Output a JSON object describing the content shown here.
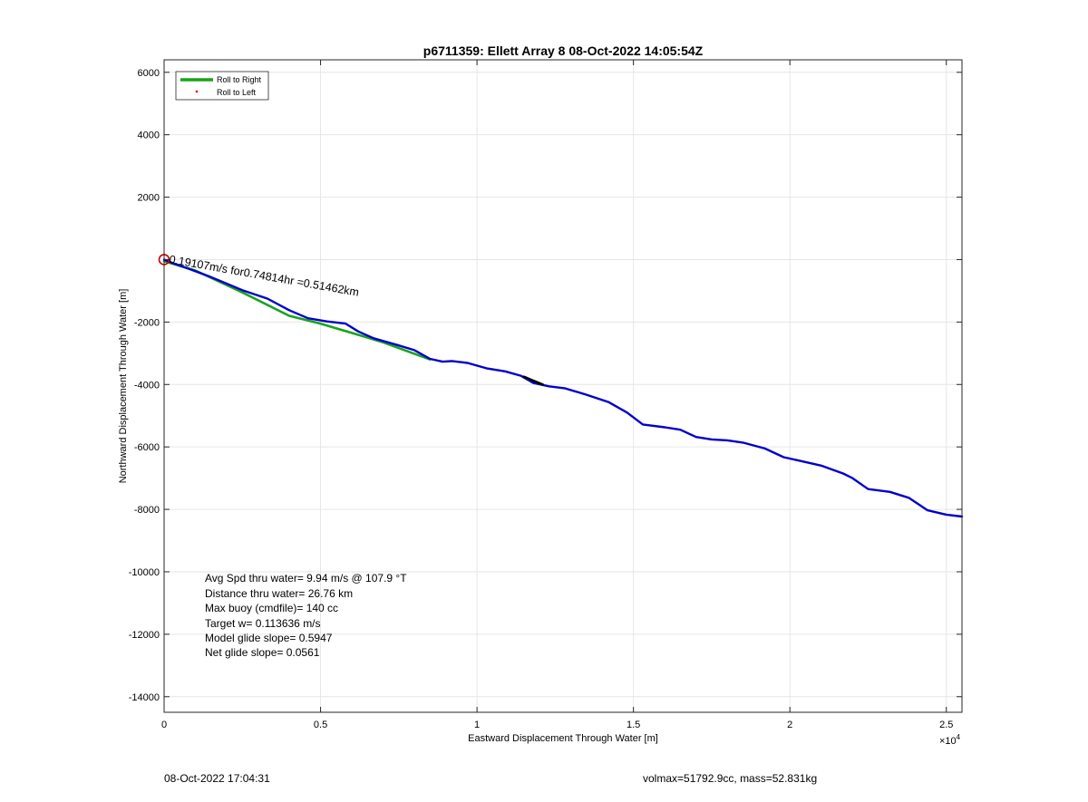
{
  "chart_data": {
    "type": "line",
    "title": "p6711359: Ellett Array 8 08-Oct-2022 14:05:54Z",
    "xlabel": "Eastward Displacement Through Water [m]",
    "ylabel": "Northward Displacement Through Water [m]",
    "x_exponent_label": "×10",
    "x_exponent_power": "4",
    "xlim": [
      0,
      25500
    ],
    "ylim": [
      -14500,
      6400
    ],
    "x_tick_values": [
      0,
      5000,
      10000,
      15000,
      20000,
      25000
    ],
    "x_tick_labels": [
      "0",
      "0.5",
      "1",
      "1.5",
      "2",
      "2.5"
    ],
    "y_tick_values": [
      6000,
      4000,
      2000,
      0,
      -2000,
      -4000,
      -6000,
      -8000,
      -10000,
      -12000,
      -14000
    ],
    "y_tick_labels": [
      "6000",
      "4000",
      "2000",
      "",
      "-2000",
      "-4000",
      "-6000",
      "-8000",
      "-10000",
      "-12000",
      "-14000"
    ],
    "grid": true,
    "legend": {
      "location": "top-left",
      "entries": [
        {
          "label": "Roll to Right",
          "color": "#1aa31a",
          "style": "line"
        },
        {
          "label": "Roll to Left",
          "color": "#e00000",
          "style": "dot"
        }
      ]
    },
    "series": [
      {
        "color": "#1aa31a",
        "points": [
          [
            0,
            -50
          ],
          [
            1000,
            -350
          ],
          [
            2500,
            -1050
          ],
          [
            4000,
            -1800
          ],
          [
            5000,
            -2050
          ],
          [
            6000,
            -2350
          ],
          [
            7000,
            -2650
          ],
          [
            8500,
            -3200
          ]
        ]
      },
      {
        "color": "#0000cc",
        "points": [
          [
            0,
            0
          ],
          [
            300,
            -120
          ],
          [
            800,
            -300
          ],
          [
            1500,
            -560
          ],
          [
            2500,
            -980
          ],
          [
            3300,
            -1250
          ],
          [
            4000,
            -1620
          ],
          [
            4600,
            -1880
          ],
          [
            5200,
            -1980
          ],
          [
            5800,
            -2050
          ],
          [
            6200,
            -2300
          ],
          [
            6700,
            -2520
          ],
          [
            7500,
            -2750
          ],
          [
            8000,
            -2900
          ],
          [
            8500,
            -3180
          ],
          [
            8900,
            -3270
          ],
          [
            9200,
            -3250
          ],
          [
            9700,
            -3310
          ],
          [
            10300,
            -3480
          ],
          [
            10900,
            -3580
          ],
          [
            11400,
            -3720
          ],
          [
            11800,
            -3950
          ],
          [
            12300,
            -4060
          ],
          [
            12800,
            -4120
          ],
          [
            13500,
            -4330
          ],
          [
            14200,
            -4560
          ],
          [
            14800,
            -4900
          ],
          [
            15300,
            -5280
          ],
          [
            16000,
            -5370
          ],
          [
            16500,
            -5450
          ],
          [
            17000,
            -5680
          ],
          [
            17500,
            -5760
          ],
          [
            18000,
            -5790
          ],
          [
            18500,
            -5860
          ],
          [
            19200,
            -6050
          ],
          [
            19800,
            -6330
          ],
          [
            20300,
            -6440
          ],
          [
            21000,
            -6600
          ],
          [
            21700,
            -6850
          ],
          [
            22000,
            -7000
          ],
          [
            22500,
            -7350
          ],
          [
            23200,
            -7440
          ],
          [
            23800,
            -7630
          ],
          [
            24400,
            -8030
          ],
          [
            25000,
            -8170
          ],
          [
            25500,
            -8230
          ]
        ]
      },
      {
        "color": "#000000",
        "points": [
          [
            11500,
            -3750
          ],
          [
            11800,
            -3880
          ],
          [
            12100,
            -4000
          ]
        ]
      }
    ],
    "start_marker": {
      "x": 0,
      "y": 0,
      "color": "#cc0000"
    },
    "annotations": {
      "segment_label": "0.19107m/s for0.74814hr =0.51462km",
      "stats": [
        "Avg Spd thru water=  9.94 m/s @ 107.9 °T",
        "Distance thru water= 26.76 km",
        "Max buoy (cmdfile)= 140 cc",
        "Target w= 0.113636 m/s",
        "Model glide slope= 0.5947",
        "Net glide slope= 0.0561"
      ]
    }
  },
  "footer": {
    "timestamp": "08-Oct-2022 17:04:31",
    "mass_info": "volmax=51792.9cc, mass=52.831kg"
  }
}
